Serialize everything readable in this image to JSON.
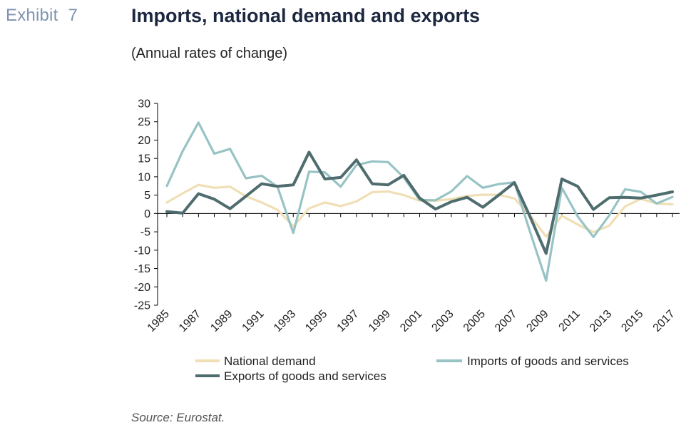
{
  "exhibit": {
    "label": "Exhibit",
    "number": "7"
  },
  "title": "Imports, national demand and exports",
  "subtitle": "(Annual rates of change)",
  "source": "Source: Eurostat.",
  "colors": {
    "national_demand": "#f0dfb5",
    "imports": "#98c3c5",
    "exports": "#4f6c6e",
    "axis": "#000000"
  },
  "chart_data": {
    "type": "line",
    "title": "",
    "xlabel": "",
    "ylabel": "",
    "x": [
      1985,
      1986,
      1987,
      1988,
      1989,
      1990,
      1991,
      1992,
      1993,
      1994,
      1995,
      1996,
      1997,
      1998,
      1999,
      2000,
      2001,
      2002,
      2003,
      2004,
      2005,
      2006,
      2007,
      2008,
      2009,
      2010,
      2011,
      2012,
      2013,
      2014,
      2015,
      2016,
      2017
    ],
    "x_tick_labels": [
      "1985",
      "1987",
      "1989",
      "1991",
      "1993",
      "1995",
      "1997",
      "1999",
      "2001",
      "2003",
      "2005",
      "2007",
      "2009",
      "2011",
      "2013",
      "2015",
      "2017"
    ],
    "ylim": [
      -25,
      30
    ],
    "y_ticks": [
      30,
      25,
      20,
      15,
      10,
      5,
      0,
      -5,
      -10,
      -15,
      -20,
      -25
    ],
    "grid": false,
    "legend_position": "bottom",
    "series": [
      {
        "name": "National demand",
        "color_key": "national_demand",
        "values": [
          3.0,
          5.5,
          7.8,
          7.0,
          7.3,
          4.7,
          3.0,
          1.0,
          -3.5,
          1.4,
          3.0,
          2.0,
          3.3,
          5.8,
          6.0,
          5.0,
          3.5,
          3.5,
          3.9,
          4.8,
          5.1,
          5.1,
          4.1,
          -0.6,
          -6.3,
          -0.6,
          -3.0,
          -5.1,
          -3.3,
          1.9,
          4.0,
          2.7,
          2.5
        ]
      },
      {
        "name": "Imports of goods and services",
        "color_key": "imports",
        "values": [
          7.5,
          17.0,
          24.8,
          16.3,
          17.6,
          9.6,
          10.3,
          7.3,
          -5.3,
          11.4,
          11.2,
          7.3,
          13.2,
          14.2,
          14.0,
          9.8,
          3.7,
          3.6,
          6.0,
          10.2,
          7.0,
          8.0,
          8.5,
          -5.2,
          -18.3,
          7.0,
          -0.8,
          -6.4,
          -0.5,
          6.6,
          5.9,
          2.7,
          4.5
        ]
      },
      {
        "name": "Exports of goods and services",
        "color_key": "exports",
        "values": [
          0.5,
          0.1,
          5.4,
          3.9,
          1.3,
          4.7,
          8.1,
          7.4,
          7.8,
          16.7,
          9.4,
          9.8,
          14.6,
          8.1,
          7.8,
          10.4,
          4.2,
          1.2,
          3.2,
          4.4,
          1.7,
          5.0,
          8.4,
          -1.0,
          -10.9,
          9.4,
          7.4,
          1.1,
          4.3,
          4.4,
          4.2,
          5.0,
          5.9
        ]
      }
    ]
  }
}
